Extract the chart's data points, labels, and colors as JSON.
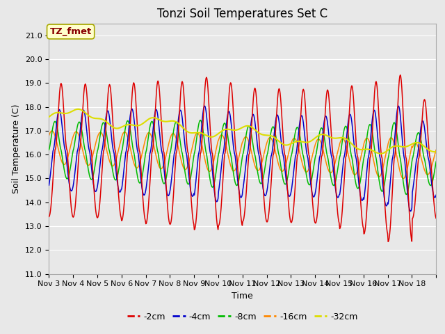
{
  "title": "Tonzi Soil Temperatures Set C",
  "xlabel": "Time",
  "ylabel": "Soil Temperature (C)",
  "ylim": [
    11.0,
    21.5
  ],
  "yticks": [
    11.0,
    12.0,
    13.0,
    14.0,
    15.0,
    16.0,
    17.0,
    18.0,
    19.0,
    20.0,
    21.0
  ],
  "annotation_label": "TZ_fmet",
  "colors_2cm": "#dd0000",
  "colors_4cm": "#0000cc",
  "colors_8cm": "#00bb00",
  "colors_16cm": "#ff8800",
  "colors_32cm": "#dddd00",
  "series_labels": [
    "-2cm",
    "-4cm",
    "-8cm",
    "-16cm",
    "-32cm"
  ],
  "xtick_labels": [
    "Nov 3",
    "Nov 4",
    "Nov 5",
    "Nov 6",
    "Nov 7",
    "Nov 8",
    "Nov 9",
    "Nov 10",
    "Nov 11",
    "Nov 12",
    "Nov 13",
    "Nov 14",
    "Nov 15",
    "Nov 16",
    "Nov 17",
    "Nov 18"
  ],
  "bg_color": "#e8e8e8",
  "plot_bg_color": "#e8e8e8",
  "grid_color": "#ffffff",
  "title_fontsize": 12,
  "axis_label_fontsize": 9,
  "tick_fontsize": 8,
  "legend_fontsize": 9,
  "n_days": 16,
  "ppd": 48
}
